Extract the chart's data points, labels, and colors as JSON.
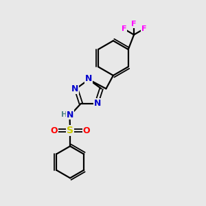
{
  "bg_color": "#e8e8e8",
  "atom_colors": {
    "C": "#000000",
    "N": "#0000cc",
    "O": "#ff0000",
    "S": "#cccc00",
    "F": "#ff00ff",
    "H": "#558888"
  },
  "bond_color": "#000000",
  "figure_size": [
    3.0,
    3.0
  ],
  "dpi": 100,
  "xlim": [
    0,
    10
  ],
  "ylim": [
    0,
    10
  ]
}
